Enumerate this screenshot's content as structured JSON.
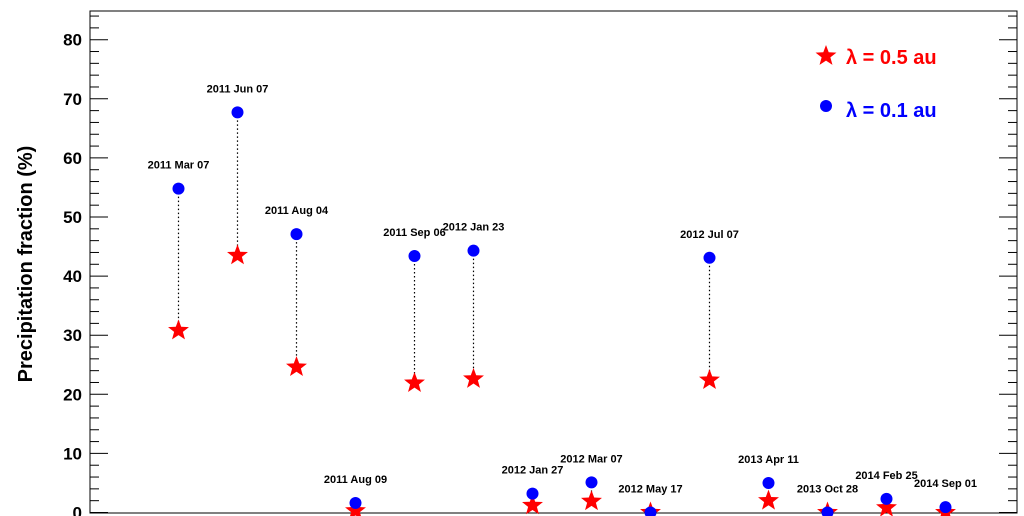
{
  "chart_data": {
    "type": "scatter",
    "title": "",
    "xlabel": "",
    "ylabel": "Precipitation fraction (%)",
    "ylim": [
      0,
      85
    ],
    "y_ticks": [
      0,
      10,
      20,
      30,
      40,
      50,
      60,
      70,
      80
    ],
    "x_ticks_shown": false,
    "grid": false,
    "legend_position": "top-right",
    "categories": [
      "2011 Mar 07",
      "2011 Jun 07",
      "2011 Aug 04",
      "2011 Aug 09",
      "2011 Sep 06",
      "2012 Jan 23",
      "2012 Jan 27",
      "2012 Mar 07",
      "2012 May 17",
      "2012 Jul 07",
      "2013 Apr 11",
      "2013 Oct 28",
      "2014 Feb 25",
      "2014 Sep 01"
    ],
    "series": [
      {
        "name": "λ = 0.5 au",
        "marker": "star",
        "color": "#ff0000",
        "values": [
          30.8,
          43.5,
          24.6,
          0.3,
          21.9,
          22.6,
          1.2,
          1.9,
          0.0,
          22.4,
          2.0,
          0.0,
          0.8,
          0.0
        ]
      },
      {
        "name": "λ = 0.1 au",
        "marker": "circle",
        "color": "#0000ff",
        "values": [
          54.8,
          67.7,
          47.1,
          1.6,
          43.4,
          44.3,
          3.2,
          5.1,
          0.0,
          43.1,
          5.0,
          0.0,
          2.3,
          0.9
        ]
      }
    ]
  }
}
